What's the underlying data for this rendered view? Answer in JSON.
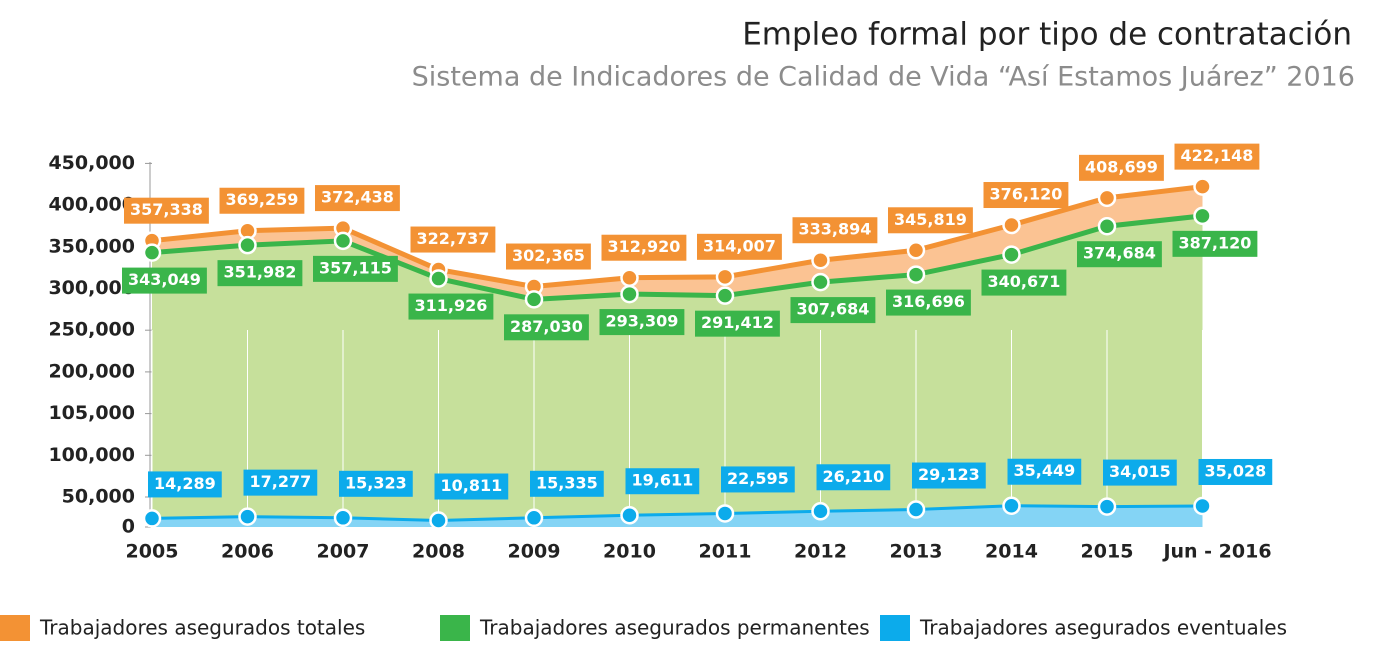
{
  "chart_data": {
    "type": "line",
    "title": "Empleo formal por tipo de contratación",
    "subtitle": "Sistema de Indicadores de Calidad de Vida “Así Estamos Juárez” 2016",
    "categories": [
      "2005",
      "2006",
      "2007",
      "2008",
      "2009",
      "2010",
      "2011",
      "2012",
      "2013",
      "2014",
      "2015",
      "Jun - 2016"
    ],
    "series": [
      {
        "name": "Trabajadores asegurados totales",
        "color": "#f39234",
        "area_color": "#fbc393",
        "values": [
          357338,
          369259,
          372438,
          322737,
          302365,
          312920,
          314007,
          333894,
          345819,
          376120,
          408699,
          422148
        ],
        "value_labels": [
          "357,338",
          "369,259",
          "372,438",
          "322,737",
          "302,365",
          "312,920",
          "314,007",
          "333,894",
          "345,819",
          "376,120",
          "408,699",
          "422,148"
        ]
      },
      {
        "name": "Trabajadores asegurados permanentes",
        "color": "#3ab54a",
        "area_color": "#c6e09b",
        "values": [
          343049,
          351982,
          357115,
          311926,
          287030,
          293309,
          291412,
          307684,
          316696,
          340671,
          374684,
          387120
        ],
        "value_labels": [
          "343,049",
          "351,982",
          "357,115",
          "311,926",
          "287,030",
          "293,309",
          "291,412",
          "307,684",
          "316,696",
          "340,671",
          "374,684",
          "387,120"
        ]
      },
      {
        "name": "Trabajadores asegurados eventuales",
        "color": "#0cabeb",
        "area_color": "#84d4f5",
        "values": [
          14289,
          17277,
          15323,
          10811,
          15335,
          19611,
          22595,
          26210,
          29123,
          35449,
          34015,
          35028
        ],
        "value_labels": [
          "14,289",
          "17,277",
          "15,323",
          "10,811",
          "15,335",
          "19,611",
          "22,595",
          "26,210",
          "29,123",
          "35,449",
          "34,015",
          "35,028"
        ]
      }
    ],
    "ylim": [
      0,
      450000
    ],
    "yticks": [
      0,
      {
        "value": 50000,
        "label": "50,000"
      },
      {
        "value": 100000,
        "label": "100,000"
      },
      {
        "value": 105000,
        "label": "105,000"
      },
      {
        "value": 200000,
        "label": "200,000"
      },
      {
        "value": 250000,
        "label": "250,000"
      },
      {
        "value": 300000,
        "label": "300,000"
      },
      {
        "value": 350000,
        "label": "350,000"
      },
      {
        "value": 400000,
        "label": "400,000"
      },
      {
        "value": 450000,
        "label": "450,000"
      }
    ],
    "legend": "bottom"
  }
}
